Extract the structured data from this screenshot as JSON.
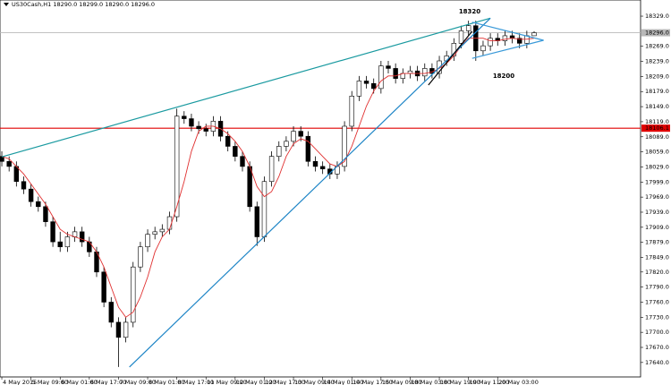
{
  "chart_data": {
    "type": "candlestick",
    "title": "US30Cash,H1  18290.0 18299.0 18290.0 18296.0",
    "open": [
      18050,
      18040,
      18030,
      18000,
      17985,
      17960,
      17950,
      17920,
      17880,
      17870,
      17890,
      17900,
      17880,
      17860,
      17820,
      17760,
      17720,
      17690,
      17720,
      17830,
      17870,
      17895,
      17900,
      17905,
      17930,
      18130,
      18125,
      18110,
      18105,
      18100,
      18120,
      18090,
      18070,
      18050,
      18030,
      17950,
      17890,
      18000,
      18050,
      18070,
      18080,
      18100,
      18090,
      18040,
      18030,
      18025,
      18015,
      18030,
      18110,
      18170,
      18200,
      18195,
      18185,
      18230,
      18225,
      18205,
      18215,
      18220,
      18210,
      18225,
      18215,
      18240,
      18250,
      18275,
      18300,
      18310,
      18260,
      18270,
      18285,
      18280,
      18290,
      18285,
      18275,
      18290
    ],
    "high": [
      18060,
      18050,
      18040,
      18010,
      17995,
      17970,
      17960,
      17930,
      17900,
      17900,
      17910,
      17910,
      17890,
      17870,
      17830,
      17770,
      17730,
      17730,
      17840,
      17880,
      17905,
      17910,
      17915,
      17940,
      18145,
      18140,
      18135,
      18120,
      18115,
      18130,
      18130,
      18100,
      18080,
      18060,
      18040,
      17960,
      18010,
      18060,
      18080,
      18090,
      18110,
      18110,
      18100,
      18050,
      18040,
      18035,
      18040,
      18120,
      18180,
      18210,
      18210,
      18205,
      18240,
      18240,
      18235,
      18225,
      18230,
      18230,
      18235,
      18235,
      18250,
      18260,
      18285,
      18310,
      18320,
      18320,
      18280,
      18295,
      18295,
      18300,
      18300,
      18295,
      18300,
      18299
    ],
    "low": [
      18030,
      18020,
      17990,
      17975,
      17950,
      17940,
      17910,
      17870,
      17860,
      17860,
      17880,
      17870,
      17850,
      17810,
      17750,
      17710,
      17631,
      17680,
      17710,
      17820,
      17860,
      17885,
      17890,
      17895,
      17920,
      18115,
      18100,
      18095,
      18090,
      18090,
      18080,
      18060,
      18040,
      18020,
      17940,
      17872,
      17880,
      17990,
      18040,
      18060,
      18070,
      18080,
      18030,
      18020,
      18015,
      18005,
      18005,
      18020,
      18100,
      18160,
      18185,
      18175,
      18175,
      18215,
      18195,
      18195,
      18205,
      18200,
      18200,
      18205,
      18205,
      18230,
      18240,
      18265,
      18290,
      18240,
      18250,
      18260,
      18270,
      18270,
      18275,
      18265,
      18265,
      18290
    ],
    "close": [
      18040,
      18030,
      18000,
      17985,
      17960,
      17950,
      17920,
      17880,
      17870,
      17890,
      17900,
      17880,
      17860,
      17820,
      17760,
      17720,
      17690,
      17720,
      17830,
      17870,
      17895,
      17900,
      17905,
      17930,
      18130,
      18125,
      18110,
      18105,
      18100,
      18120,
      18090,
      18070,
      18050,
      18030,
      17950,
      17890,
      18000,
      18050,
      18070,
      18080,
      18100,
      18090,
      18040,
      18030,
      18025,
      18015,
      18030,
      18110,
      18170,
      18200,
      18195,
      18185,
      18230,
      18225,
      18205,
      18215,
      18220,
      18210,
      18225,
      18215,
      18240,
      18250,
      18275,
      18300,
      18310,
      18260,
      18270,
      18285,
      18280,
      18290,
      18285,
      18275,
      18290,
      18296
    ],
    "ma": {
      "color": "#e03030",
      "values": [
        18050,
        18045,
        18030,
        18015,
        17995,
        17975,
        17955,
        17930,
        17905,
        17895,
        17890,
        17885,
        17880,
        17860,
        17830,
        17790,
        17750,
        17730,
        17740,
        17770,
        17810,
        17860,
        17890,
        17905,
        17950,
        18000,
        18060,
        18100,
        18110,
        18110,
        18105,
        18095,
        18080,
        18060,
        18030,
        17990,
        17970,
        17980,
        18010,
        18050,
        18075,
        18085,
        18080,
        18065,
        18050,
        18035,
        18030,
        18040,
        18070,
        18110,
        18150,
        18180,
        18200,
        18210,
        18210,
        18215,
        18215,
        18215,
        18215,
        18218,
        18225,
        18235,
        18250,
        18270,
        18285,
        18285,
        18285,
        18280,
        18280,
        18283,
        18285,
        18283,
        18283,
        18285
      ]
    },
    "xlim": [
      -0.25,
      87.6
    ],
    "ylim": [
      17613,
      18354
    ],
    "xticks": [
      {
        "value": 0,
        "label": "4 May 2015"
      },
      {
        "value": 4,
        "label": "5 May 09:00"
      },
      {
        "value": 8,
        "label": "6 May 01:00"
      },
      {
        "value": 12,
        "label": "6 May 17:00"
      },
      {
        "value": 16,
        "label": "7 May 09:00"
      },
      {
        "value": 20,
        "label": "8 May 01:00"
      },
      {
        "value": 24,
        "label": "8 May 17:00"
      },
      {
        "value": 28,
        "label": "11 May 09:00"
      },
      {
        "value": 32,
        "label": "12 May 01:00"
      },
      {
        "value": 36,
        "label": "12 May 17:00"
      },
      {
        "value": 40,
        "label": "13 May 09:00"
      },
      {
        "value": 44,
        "label": "14 May 01:00"
      },
      {
        "value": 48,
        "label": "14 May 17:00"
      },
      {
        "value": 52,
        "label": "15 May 09:00"
      },
      {
        "value": 56,
        "label": "18 May 03:00"
      },
      {
        "value": 60,
        "label": "18 May 19:00"
      },
      {
        "value": 64,
        "label": "19 May 11:00"
      },
      {
        "value": 68,
        "label": "20 May 03:00"
      }
    ],
    "yticks": [
      {
        "value": 18329,
        "label": "18329.0"
      },
      {
        "value": 18269,
        "label": "18269.0"
      },
      {
        "value": 18239,
        "label": "18239.0"
      },
      {
        "value": 18209,
        "label": "18209.0"
      },
      {
        "value": 18179,
        "label": "18179.0"
      },
      {
        "value": 18149,
        "label": "18149.0"
      },
      {
        "value": 18119,
        "label": "18119.0"
      },
      {
        "value": 18089,
        "label": "18089.0"
      },
      {
        "value": 18059,
        "label": "18059.0"
      },
      {
        "value": 18029,
        "label": "18029.0"
      },
      {
        "value": 17999,
        "label": "17999.0"
      },
      {
        "value": 17969,
        "label": "17969.0"
      },
      {
        "value": 17939,
        "label": "17939.0"
      },
      {
        "value": 17909,
        "label": "17909.0"
      },
      {
        "value": 17879,
        "label": "17879.0"
      },
      {
        "value": 17849,
        "label": "17849.0"
      },
      {
        "value": 17820,
        "label": "17820.0"
      },
      {
        "value": 17790,
        "label": "17790.0"
      },
      {
        "value": 17760,
        "label": "17760.0"
      },
      {
        "value": 17730,
        "label": "17730.0"
      },
      {
        "value": 17700,
        "label": "17700.0"
      },
      {
        "value": 17670,
        "label": "17670.0"
      },
      {
        "value": 17640,
        "label": "17640.0"
      }
    ],
    "levels": [
      {
        "value": 18106.1,
        "label": "18106.1",
        "color": "#e00000"
      },
      {
        "value": 18296,
        "label": "18296.0",
        "color": "#b8b8b8"
      }
    ],
    "trendlines": [
      {
        "x": [
          0,
          67
        ],
        "y": [
          18049,
          18325
        ],
        "color": "#1a9aa0"
      },
      {
        "x": [
          17.5,
          67
        ],
        "y": [
          17631,
          18325
        ],
        "color": "#1c84c6"
      },
      {
        "x": [
          58.5,
          64.5
        ],
        "y": [
          18192,
          18299
        ],
        "color": "#000000"
      },
      {
        "x": [
          64.5,
          74.3
        ],
        "y": [
          18317,
          18281
        ],
        "color": "#3a9ad9"
      },
      {
        "x": [
          64.5,
          74.3
        ],
        "y": [
          18245,
          18281
        ],
        "color": "#3a9ad9"
      }
    ],
    "annotations": [
      "18320",
      "18200"
    ]
  }
}
